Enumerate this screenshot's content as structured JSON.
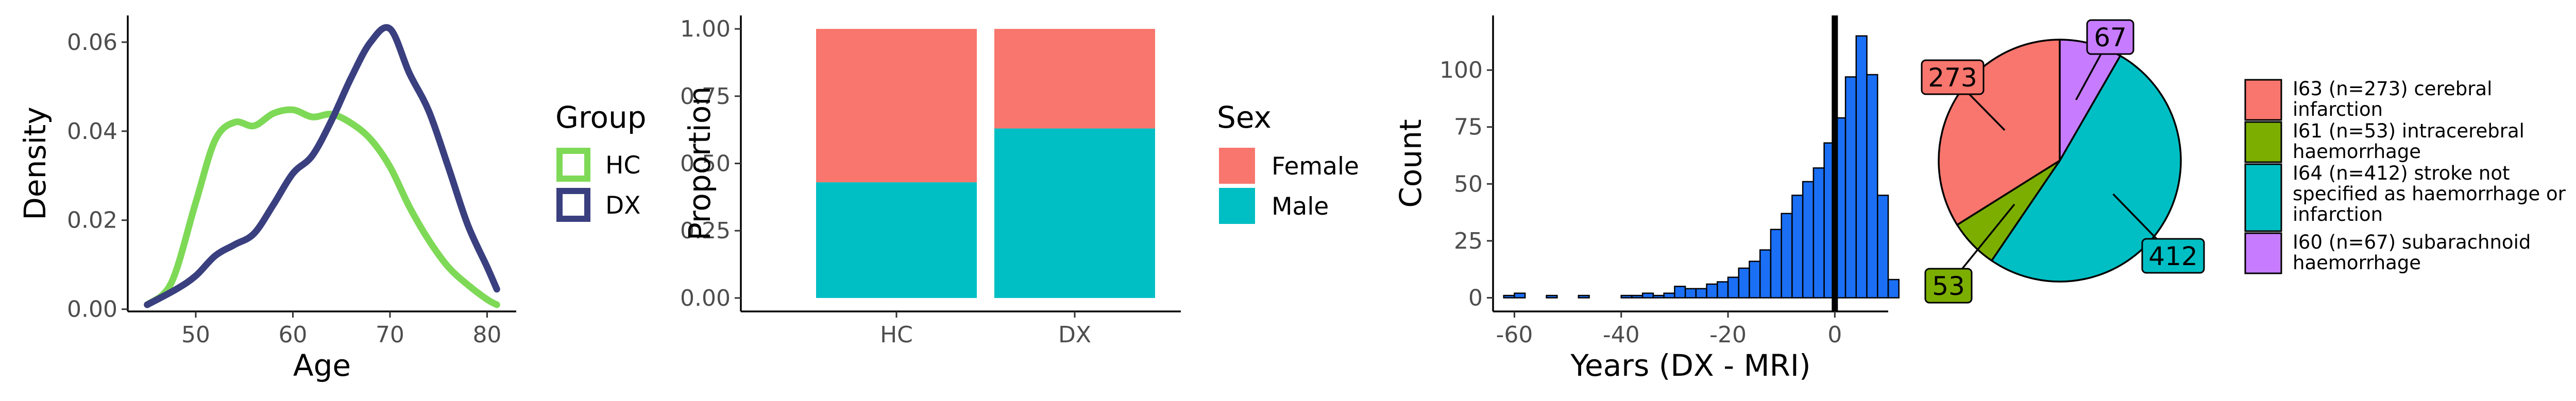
{
  "chart_data": [
    {
      "type": "line",
      "subtype": "density",
      "xlabel": "Age",
      "ylabel": "Density",
      "xlim": [
        43,
        83
      ],
      "ylim": [
        -0.0005,
        0.066
      ],
      "xticks": [
        50,
        60,
        70,
        80
      ],
      "yticks": [
        0.0,
        0.02,
        0.04,
        0.06
      ],
      "ytick_labels": [
        "0.00",
        "0.02",
        "0.04",
        "0.06"
      ],
      "legend": {
        "title": "Group",
        "position": "right"
      },
      "series": [
        {
          "name": "HC",
          "color": "#7ed957",
          "x": [
            45,
            47.5,
            50,
            52,
            54,
            56,
            58,
            60,
            62,
            64,
            66,
            68,
            70,
            72,
            74,
            76,
            78,
            80,
            81
          ],
          "y": [
            0.001,
            0.006,
            0.024,
            0.038,
            0.042,
            0.0412,
            0.044,
            0.0448,
            0.0432,
            0.0438,
            0.0418,
            0.0382,
            0.032,
            0.023,
            0.0155,
            0.0095,
            0.0055,
            0.0022,
            0.001
          ]
        },
        {
          "name": "DX",
          "color": "#3a3f7f",
          "x": [
            45,
            48,
            50,
            52,
            54,
            56,
            58,
            60,
            62,
            64,
            66,
            68,
            70,
            72,
            74,
            76,
            78,
            80,
            81
          ],
          "y": [
            0.001,
            0.0045,
            0.0075,
            0.012,
            0.0145,
            0.017,
            0.0235,
            0.0305,
            0.0345,
            0.0425,
            0.052,
            0.06,
            0.063,
            0.053,
            0.0445,
            0.032,
            0.019,
            0.0095,
            0.0045
          ]
        }
      ]
    },
    {
      "type": "bar",
      "subtype": "stacked-proportion",
      "xlabel": "",
      "ylabel": "Proportion",
      "ylim": [
        -0.05,
        1.05
      ],
      "yticks": [
        0,
        0.25,
        0.5,
        0.75,
        1.0
      ],
      "ytick_labels": [
        "0.00",
        "0.25",
        "0.50",
        "0.75",
        "1.00"
      ],
      "categories": [
        "HC",
        "DX"
      ],
      "legend": {
        "title": "Sex",
        "position": "right"
      },
      "series": [
        {
          "name": "Male",
          "color": "#00bfc4",
          "values": [
            0.43,
            0.63
          ]
        },
        {
          "name": "Female",
          "color": "#f8766d",
          "values": [
            0.57,
            0.37
          ]
        }
      ]
    },
    {
      "type": "bar",
      "subtype": "histogram",
      "xlabel": "Years (DX - MRI)",
      "ylabel": "Count",
      "xlim": [
        -64,
        10
      ],
      "ylim": [
        -6,
        124
      ],
      "xticks": [
        -60,
        -40,
        -20,
        0
      ],
      "xtick_labels": [
        "-60",
        "-40",
        "-20",
        "0"
      ],
      "yticks": [
        0,
        25,
        50,
        75,
        100
      ],
      "bin_width": 2,
      "bin_start": -62,
      "color": "#1a6ff5",
      "values": [
        1,
        2,
        0,
        0,
        1,
        0,
        0,
        1,
        0,
        0,
        0,
        1,
        1,
        2,
        1,
        2,
        5,
        4,
        4,
        6,
        7,
        9,
        13,
        16,
        21,
        30,
        37,
        45,
        51,
        57,
        68,
        79,
        97,
        115,
        98,
        45,
        8,
        0
      ],
      "vline": 0
    },
    {
      "type": "pie",
      "labels": [
        "I63 (n=273) cerebral infarction",
        "I61 (n=53) intracerebral haemorrhage",
        "I64 (n=412) stroke not specified as haemorrhage or infarction",
        "I60 (n=67) subarachnoid haemorrhage"
      ],
      "legend_lines": [
        [
          "I63 (n=273) cerebral",
          "infarction"
        ],
        [
          "I61 (n=53) intracerebral",
          "haemorrhage"
        ],
        [
          "I64 (n=412) stroke not",
          "specified as haemorrhage or",
          "infarction"
        ],
        [
          "I60 (n=67) subarachnoid",
          "haemorrhage"
        ]
      ],
      "values": [
        273,
        53,
        412,
        67
      ],
      "slice_labels": [
        "273",
        "53",
        "412",
        "67"
      ],
      "colors": [
        "#f8766d",
        "#7cae00",
        "#00bfc4",
        "#c77cff"
      ]
    }
  ]
}
